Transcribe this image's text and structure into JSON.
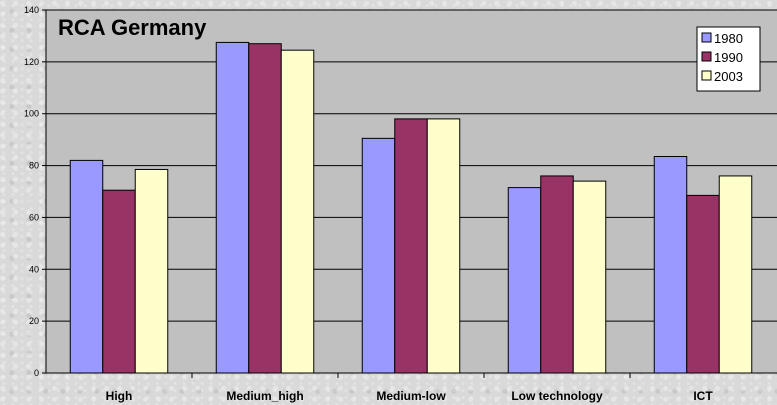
{
  "chart_data": {
    "type": "bar",
    "title": "RCA  Germany",
    "categories": [
      "High",
      "Medium_high",
      "Medium-low",
      "Low technology",
      "ICT"
    ],
    "series": [
      {
        "name": "1980",
        "values": [
          82,
          127.5,
          90.5,
          71.5,
          83.5
        ],
        "color": "#9999ff"
      },
      {
        "name": "1990",
        "values": [
          70.5,
          127,
          98,
          76,
          68.5
        ],
        "color": "#993366"
      },
      {
        "name": "2003",
        "values": [
          78.5,
          124.5,
          98,
          74,
          76
        ],
        "color": "#ffffcc"
      }
    ],
    "ylim": [
      0,
      140
    ],
    "yticks": [
      0,
      20,
      40,
      60,
      80,
      100,
      120,
      140
    ],
    "grid": true,
    "legend": "top-right",
    "plot_background": "#c0c0c0"
  }
}
